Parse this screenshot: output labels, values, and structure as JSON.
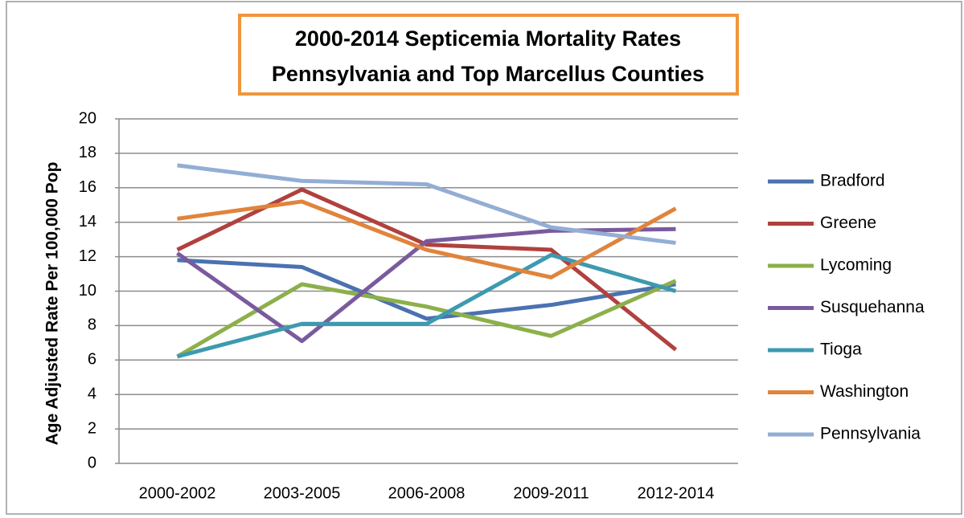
{
  "chart_data": {
    "type": "line",
    "title": [
      "2000-2014 Septicemia Mortality Rates",
      "Pennsylvania and Top Marcellus Counties"
    ],
    "y_label": "Age Adjusted Rate  Per  100,000 Pop",
    "categories": [
      "2000-2002",
      "2003-2005",
      "2006-2008",
      "2009-2011",
      "2012-2014"
    ],
    "series": [
      {
        "name": "Bradford",
        "color": "#4a72b0",
        "values": [
          11.8,
          11.4,
          8.4,
          9.2,
          10.4
        ]
      },
      {
        "name": "Greene",
        "color": "#b0413e",
        "values": [
          12.4,
          15.9,
          12.7,
          12.4,
          6.6
        ]
      },
      {
        "name": "Lycoming",
        "color": "#8cb04a",
        "values": [
          6.2,
          10.4,
          9.1,
          7.4,
          10.6
        ]
      },
      {
        "name": "Susquehanna",
        "color": "#7a5a9e",
        "values": [
          12.2,
          7.1,
          12.9,
          13.5,
          13.6
        ]
      },
      {
        "name": "Tioga",
        "color": "#3d9aaf",
        "values": [
          6.2,
          8.1,
          8.1,
          12.1,
          10.0
        ]
      },
      {
        "name": "Washington",
        "color": "#e0843c",
        "values": [
          14.2,
          15.2,
          12.4,
          10.8,
          14.8
        ]
      },
      {
        "name": "Pennsylvania",
        "color": "#93aed4",
        "values": [
          17.3,
          16.4,
          16.2,
          13.7,
          12.8
        ]
      }
    ],
    "ylim": [
      0,
      20
    ],
    "yticks": [
      0,
      2,
      4,
      6,
      8,
      10,
      12,
      14,
      16,
      18,
      20
    ],
    "grid": true,
    "legend": "right"
  }
}
